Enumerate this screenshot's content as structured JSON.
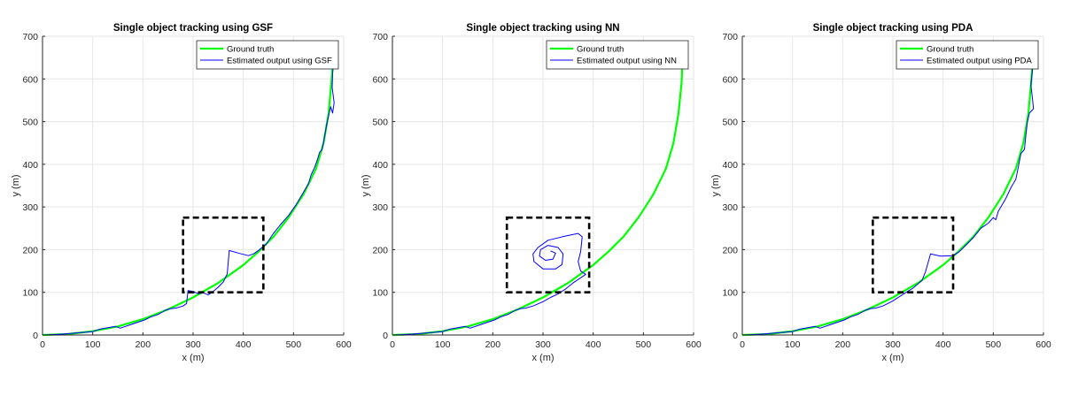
{
  "figure": {
    "colors": {
      "ground_truth": "#00ff00",
      "estimate": "#0000ff",
      "grid": "#e6e6e6",
      "axes": "#262626",
      "box": "#000000"
    }
  },
  "chart_data": [
    {
      "type": "line",
      "title": "Single object tracking using GSF",
      "xlabel": "x (m)",
      "ylabel": "y (m)",
      "xlim": [
        0,
        600
      ],
      "ylim": [
        0,
        700
      ],
      "xticks": [
        "0",
        "100",
        "200",
        "300",
        "400",
        "500",
        "600"
      ],
      "yticks": [
        "0",
        "100",
        "200",
        "300",
        "400",
        "500",
        "600",
        "700"
      ],
      "grid": true,
      "legend_position": "top-right",
      "box_annotation": {
        "x": [
          280,
          440
        ],
        "y": [
          100,
          275
        ]
      },
      "series": [
        {
          "name": "Ground truth",
          "style": "ground_truth",
          "points": [
            [
              0,
              0
            ],
            [
              50,
              2
            ],
            [
              100,
              9
            ],
            [
              150,
              20
            ],
            [
              200,
              37
            ],
            [
              250,
              60
            ],
            [
              300,
              88
            ],
            [
              350,
              122
            ],
            [
              400,
              164
            ],
            [
              430,
              195
            ],
            [
              460,
              230
            ],
            [
              490,
              275
            ],
            [
              520,
              330
            ],
            [
              545,
              390
            ],
            [
              560,
              450
            ],
            [
              570,
              520
            ],
            [
              576,
              600
            ],
            [
              578,
              640
            ]
          ]
        },
        {
          "name": "Estimated output using GSF",
          "style": "estimate",
          "points": [
            [
              0,
              0
            ],
            [
              40,
              2
            ],
            [
              100,
              8
            ],
            [
              115,
              14
            ],
            [
              130,
              17
            ],
            [
              145,
              20
            ],
            [
              155,
              16
            ],
            [
              165,
              20
            ],
            [
              175,
              24
            ],
            [
              190,
              30
            ],
            [
              205,
              36
            ],
            [
              215,
              42
            ],
            [
              230,
              48
            ],
            [
              245,
              58
            ],
            [
              255,
              62
            ],
            [
              265,
              63
            ],
            [
              280,
              68
            ],
            [
              287,
              74
            ],
            [
              290,
              104
            ],
            [
              300,
              102
            ],
            [
              310,
              97
            ],
            [
              320,
              99
            ],
            [
              330,
              94
            ],
            [
              340,
              102
            ],
            [
              350,
              112
            ],
            [
              360,
              124
            ],
            [
              368,
              143
            ],
            [
              372,
              198
            ],
            [
              390,
              192
            ],
            [
              410,
              186
            ],
            [
              420,
              190
            ],
            [
              430,
              198
            ],
            [
              445,
              212
            ],
            [
              460,
              238
            ],
            [
              475,
              260
            ],
            [
              490,
              280
            ],
            [
              505,
              305
            ],
            [
              520,
              335
            ],
            [
              530,
              355
            ],
            [
              535,
              375
            ],
            [
              542,
              392
            ],
            [
              548,
              412
            ],
            [
              552,
              428
            ],
            [
              557,
              434
            ],
            [
              560,
              452
            ],
            [
              563,
              472
            ],
            [
              566,
              492
            ],
            [
              570,
              514
            ],
            [
              574,
              535
            ],
            [
              578,
              520
            ],
            [
              581,
              544
            ],
            [
              577,
              580
            ],
            [
              578,
              612
            ],
            [
              580,
              640
            ]
          ]
        }
      ]
    },
    {
      "type": "line",
      "title": "Single object tracking using NN",
      "xlabel": "x (m)",
      "ylabel": "y (m)",
      "xlim": [
        0,
        600
      ],
      "ylim": [
        0,
        700
      ],
      "xticks": [
        "0",
        "100",
        "200",
        "300",
        "400",
        "500",
        "600"
      ],
      "yticks": [
        "0",
        "100",
        "200",
        "300",
        "400",
        "500",
        "600",
        "700"
      ],
      "grid": true,
      "legend_position": "top-right",
      "box_annotation": {
        "x": [
          228,
          392
        ],
        "y": [
          100,
          275
        ]
      },
      "series": [
        {
          "name": "Ground truth",
          "style": "ground_truth",
          "points": [
            [
              0,
              0
            ],
            [
              50,
              2
            ],
            [
              100,
              9
            ],
            [
              150,
              20
            ],
            [
              200,
              37
            ],
            [
              250,
              60
            ],
            [
              300,
              88
            ],
            [
              350,
              122
            ],
            [
              400,
              164
            ],
            [
              430,
              195
            ],
            [
              460,
              230
            ],
            [
              490,
              275
            ],
            [
              520,
              330
            ],
            [
              545,
              390
            ],
            [
              560,
              450
            ],
            [
              570,
              520
            ],
            [
              576,
              590
            ],
            [
              578,
              640
            ]
          ]
        },
        {
          "name": "Estimated output using NN",
          "style": "estimate",
          "points": [
            [
              0,
              0
            ],
            [
              40,
              2
            ],
            [
              100,
              8
            ],
            [
              115,
              14
            ],
            [
              130,
              17
            ],
            [
              145,
              20
            ],
            [
              155,
              16
            ],
            [
              165,
              20
            ],
            [
              175,
              24
            ],
            [
              190,
              30
            ],
            [
              205,
              36
            ],
            [
              215,
              42
            ],
            [
              230,
              48
            ],
            [
              245,
              58
            ],
            [
              255,
              62
            ],
            [
              265,
              63
            ],
            [
              280,
              68
            ],
            [
              300,
              78
            ],
            [
              315,
              88
            ],
            [
              330,
              96
            ],
            [
              345,
              108
            ],
            [
              360,
              122
            ],
            [
              375,
              134
            ],
            [
              385,
              142
            ],
            [
              375,
              150
            ],
            [
              370,
              172
            ],
            [
              375,
              195
            ],
            [
              378,
              230
            ],
            [
              370,
              238
            ],
            [
              345,
              232
            ],
            [
              310,
              222
            ],
            [
              290,
              205
            ],
            [
              280,
              190
            ],
            [
              282,
              172
            ],
            [
              300,
              155
            ],
            [
              325,
              155
            ],
            [
              338,
              165
            ],
            [
              340,
              190
            ],
            [
              330,
              205
            ],
            [
              310,
              210
            ],
            [
              295,
              200
            ],
            [
              293,
              185
            ],
            [
              305,
              175
            ],
            [
              320,
              178
            ],
            [
              325,
              192
            ],
            [
              315,
              197
            ]
          ]
        }
      ]
    },
    {
      "type": "line",
      "title": "Single object tracking using PDA",
      "xlabel": "x (m)",
      "ylabel": "y (m)",
      "xlim": [
        0,
        600
      ],
      "ylim": [
        0,
        700
      ],
      "xticks": [
        "0",
        "100",
        "200",
        "300",
        "400",
        "500",
        "600"
      ],
      "yticks": [
        "0",
        "100",
        "200",
        "300",
        "400",
        "500",
        "600",
        "700"
      ],
      "grid": true,
      "legend_position": "top-right",
      "box_annotation": {
        "x": [
          260,
          420
        ],
        "y": [
          100,
          275
        ]
      },
      "series": [
        {
          "name": "Ground truth",
          "style": "ground_truth",
          "points": [
            [
              0,
              0
            ],
            [
              50,
              2
            ],
            [
              100,
              9
            ],
            [
              150,
              20
            ],
            [
              200,
              37
            ],
            [
              250,
              60
            ],
            [
              300,
              88
            ],
            [
              350,
              122
            ],
            [
              400,
              164
            ],
            [
              430,
              195
            ],
            [
              460,
              230
            ],
            [
              490,
              275
            ],
            [
              520,
              330
            ],
            [
              545,
              390
            ],
            [
              560,
              450
            ],
            [
              570,
              520
            ],
            [
              576,
              600
            ],
            [
              578,
              640
            ]
          ]
        },
        {
          "name": "Estimated output using PDA",
          "style": "estimate",
          "points": [
            [
              0,
              0
            ],
            [
              40,
              2
            ],
            [
              100,
              8
            ],
            [
              115,
              14
            ],
            [
              130,
              17
            ],
            [
              145,
              20
            ],
            [
              155,
              16
            ],
            [
              165,
              20
            ],
            [
              175,
              24
            ],
            [
              190,
              30
            ],
            [
              205,
              36
            ],
            [
              215,
              42
            ],
            [
              230,
              48
            ],
            [
              245,
              58
            ],
            [
              255,
              62
            ],
            [
              265,
              63
            ],
            [
              280,
              68
            ],
            [
              300,
              80
            ],
            [
              320,
              95
            ],
            [
              340,
              110
            ],
            [
              358,
              128
            ],
            [
              365,
              148
            ],
            [
              375,
              190
            ],
            [
              395,
              185
            ],
            [
              420,
              186
            ],
            [
              432,
              195
            ],
            [
              445,
              210
            ],
            [
              460,
              228
            ],
            [
              475,
              250
            ],
            [
              490,
              262
            ],
            [
              500,
              275
            ],
            [
              505,
              270
            ],
            [
              510,
              290
            ],
            [
              525,
              320
            ],
            [
              535,
              345
            ],
            [
              545,
              365
            ],
            [
              550,
              395
            ],
            [
              555,
              425
            ],
            [
              562,
              435
            ],
            [
              565,
              470
            ],
            [
              568,
              500
            ],
            [
              572,
              520
            ],
            [
              580,
              530
            ],
            [
              578,
              555
            ],
            [
              575,
              585
            ],
            [
              578,
              620
            ],
            [
              580,
              640
            ]
          ]
        }
      ]
    }
  ]
}
